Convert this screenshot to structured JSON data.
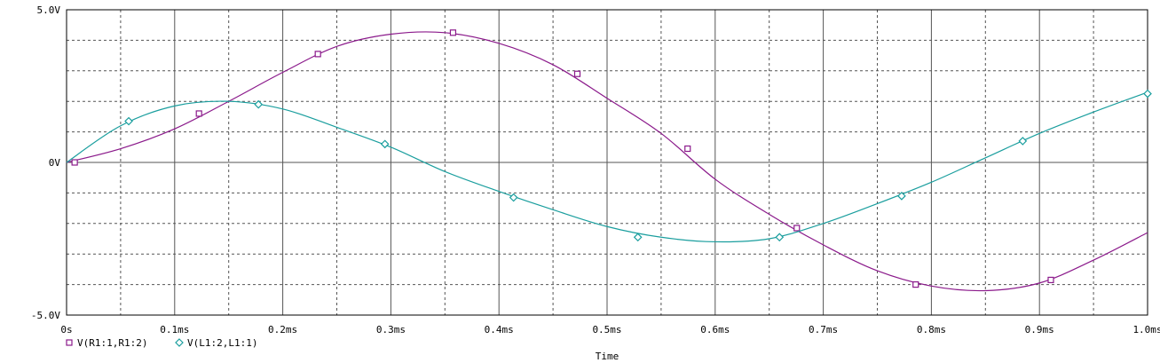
{
  "chart_data": {
    "type": "line",
    "xlabel": "Time",
    "ylabel": "",
    "xlim": [
      0,
      1.0
    ],
    "ylim": [
      -5.0,
      5.0
    ],
    "x_unit": "ms",
    "grid": true,
    "legend_placement": "bottom-left",
    "x_ticks": [
      {
        "v": 0.0,
        "label": "0s"
      },
      {
        "v": 0.1,
        "label": "0.1ms"
      },
      {
        "v": 0.2,
        "label": "0.2ms"
      },
      {
        "v": 0.3,
        "label": "0.3ms"
      },
      {
        "v": 0.4,
        "label": "0.4ms"
      },
      {
        "v": 0.5,
        "label": "0.5ms"
      },
      {
        "v": 0.6,
        "label": "0.6ms"
      },
      {
        "v": 0.7,
        "label": "0.7ms"
      },
      {
        "v": 0.8,
        "label": "0.8ms"
      },
      {
        "v": 0.9,
        "label": "0.9ms"
      },
      {
        "v": 1.0,
        "label": "1.0ms"
      }
    ],
    "y_ticks": [
      {
        "v": 5.0,
        "label": "5.0V"
      },
      {
        "v": 0.0,
        "label": "0V"
      },
      {
        "v": -5.0,
        "label": "-5.0V"
      }
    ],
    "series": [
      {
        "name": "V(R1:1,R1:2)",
        "marker": "square",
        "color": "#8b1a8b",
        "x": [
          0.0,
          0.05,
          0.1,
          0.15,
          0.2,
          0.25,
          0.3,
          0.35,
          0.4,
          0.45,
          0.5,
          0.55,
          0.6,
          0.65,
          0.7,
          0.75,
          0.8,
          0.85,
          0.9,
          0.95,
          1.0
        ],
        "y": [
          0.0,
          0.45,
          1.1,
          2.0,
          2.95,
          3.8,
          4.2,
          4.25,
          3.9,
          3.2,
          2.1,
          0.95,
          -0.55,
          -1.7,
          -2.7,
          -3.55,
          -4.05,
          -4.2,
          -3.95,
          -3.2,
          -2.3
        ],
        "markers_x": [
          0.0075,
          0.1225,
          0.2325,
          0.3575,
          0.4725,
          0.5745,
          0.6755,
          0.7855,
          0.9105
        ],
        "markers_y": [
          0.0,
          1.6,
          3.55,
          4.25,
          2.9,
          0.45,
          -2.15,
          -4.0,
          -3.85
        ]
      },
      {
        "name": "V(L1:2,L1:1)",
        "marker": "diamond",
        "color": "#1a9e9e",
        "x": [
          0.0,
          0.05,
          0.1,
          0.15,
          0.2,
          0.25,
          0.3,
          0.35,
          0.4,
          0.45,
          0.5,
          0.55,
          0.6,
          0.65,
          0.7,
          0.75,
          0.8,
          0.85,
          0.9,
          0.95,
          1.0
        ],
        "y": [
          0.0,
          1.2,
          1.85,
          2.0,
          1.75,
          1.15,
          0.5,
          -0.3,
          -0.95,
          -1.55,
          -2.1,
          -2.45,
          -2.6,
          -2.5,
          -2.0,
          -1.35,
          -0.65,
          0.15,
          0.95,
          1.65,
          2.3
        ],
        "markers_x": [
          0.0575,
          0.1775,
          0.2945,
          0.4135,
          0.5285,
          0.6595,
          0.7725,
          0.8845,
          1.0
        ],
        "markers_y": [
          1.35,
          1.9,
          0.6,
          -1.15,
          -2.45,
          -2.45,
          -1.1,
          0.7,
          2.25
        ]
      }
    ]
  }
}
